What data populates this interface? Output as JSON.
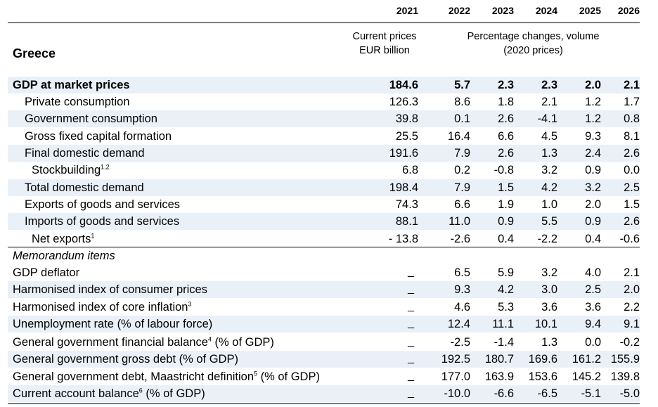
{
  "years": [
    "2021",
    "2022",
    "2023",
    "2024",
    "2025",
    "2026"
  ],
  "subheader": {
    "col1_line1": "Current prices",
    "col1_line2": "EUR billion",
    "col2_line1": "Percentage changes, volume",
    "col2_line2": "(2020 prices)"
  },
  "country": "Greece",
  "rows": [
    {
      "label": "GDP at market prices",
      "sup": "",
      "values": [
        "184.6",
        "5.7",
        "2.3",
        "2.3",
        "2.0",
        "2.1"
      ]
    },
    {
      "label": "Private consumption",
      "sup": "",
      "values": [
        "126.3",
        "8.6",
        "1.8",
        "2.1",
        "1.2",
        "1.7"
      ]
    },
    {
      "label": "Government consumption",
      "sup": "",
      "values": [
        "39.8",
        "0.1",
        "2.6",
        "-4.1",
        "1.2",
        "0.8"
      ]
    },
    {
      "label": "Gross fixed capital formation",
      "sup": "",
      "values": [
        "25.5",
        "16.4",
        "6.6",
        "4.5",
        "9.3",
        "8.1"
      ]
    },
    {
      "label": "Final domestic demand",
      "sup": "",
      "values": [
        "191.6",
        "7.9",
        "2.6",
        "1.3",
        "2.4",
        "2.6"
      ]
    },
    {
      "label": "Stockbuilding",
      "sup": "1,2",
      "values": [
        "6.8",
        "0.2",
        "-0.8",
        "3.2",
        "0.9",
        "0.0"
      ]
    },
    {
      "label": "Total domestic demand",
      "sup": "",
      "values": [
        "198.4",
        "7.9",
        "1.5",
        "4.2",
        "3.2",
        "2.5"
      ]
    },
    {
      "label": "Exports of goods and services",
      "sup": "",
      "values": [
        "74.3",
        "6.6",
        "1.9",
        "1.0",
        "2.0",
        "1.5"
      ]
    },
    {
      "label": "Imports of goods and services",
      "sup": "",
      "values": [
        "88.1",
        "11.0",
        "0.9",
        "5.5",
        "0.9",
        "2.6"
      ]
    },
    {
      "label": "Net exports",
      "sup": "1",
      "values": [
        "- 13.8",
        "-2.6",
        "0.4",
        "-2.2",
        "0.4",
        "-0.6"
      ]
    }
  ],
  "memo_title": "Memorandum items",
  "memo": [
    {
      "label": "GDP deflator",
      "sup": "",
      "values": [
        "_",
        "6.5",
        "5.9",
        "3.2",
        "4.0",
        "2.1"
      ]
    },
    {
      "label": "Harmonised index of consumer prices",
      "sup": "",
      "values": [
        "_",
        "9.3",
        "4.2",
        "3.0",
        "2.5",
        "2.0"
      ]
    },
    {
      "label": "Harmonised index of core inflation",
      "sup": "3",
      "values": [
        "_",
        "4.6",
        "5.3",
        "3.6",
        "3.6",
        "2.2"
      ]
    },
    {
      "label": "Unemployment rate (% of labour force)",
      "sup": "",
      "values": [
        "_",
        "12.4",
        "11.1",
        "10.1",
        "9.4",
        "9.1"
      ]
    },
    {
      "label": "General government financial balance",
      "sup": "4",
      "suffix": " (% of GDP)",
      "values": [
        "_",
        "-2.5",
        "-1.4",
        "1.3",
        "0.0",
        "-0.2"
      ]
    },
    {
      "label": "General government gross debt (% of GDP)",
      "sup": "",
      "values": [
        "_",
        "192.5",
        "180.7",
        "169.6",
        "161.2",
        "155.9"
      ]
    },
    {
      "label": "General government debt, Maastricht definition",
      "sup": "5",
      "suffix": " (% of GDP)",
      "values": [
        "_",
        "177.0",
        "163.9",
        "153.6",
        "145.2",
        "139.8"
      ]
    },
    {
      "label": "Current account balance",
      "sup": "6",
      "suffix": " (% of GDP)",
      "values": [
        "_",
        "-10.0",
        "-6.6",
        "-6.5",
        "-5.1",
        "-5.0"
      ]
    }
  ]
}
